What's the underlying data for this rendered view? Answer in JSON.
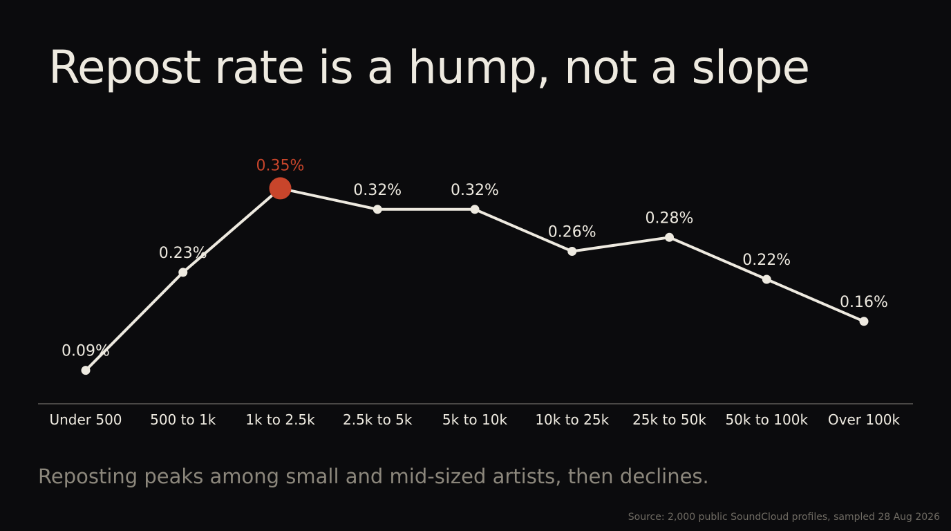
{
  "title": "Repost rate is a hump, not a slope",
  "subtitle": "Reposting peaks among small and mid-sized artists, then declines.",
  "source": "Source: 2,000 public SoundCloud profiles, sampled 28 Aug 2026",
  "colors": {
    "background": "#0b0b0d",
    "line": "#eeeae0",
    "highlight": "#c8452b",
    "subtitle": "#8c877c",
    "axis": "#8a867e"
  },
  "chart_data": {
    "type": "line",
    "categories": [
      "Under 500",
      "500 to 1k",
      "1k to 2.5k",
      "2.5k to 5k",
      "5k to 10k",
      "10k to 25k",
      "25k to 50k",
      "50k to 100k",
      "Over 100k"
    ],
    "values": [
      0.09,
      0.23,
      0.35,
      0.32,
      0.32,
      0.26,
      0.28,
      0.22,
      0.16
    ],
    "data_labels": [
      "0.09%",
      "0.23%",
      "0.35%",
      "0.32%",
      "0.32%",
      "0.26%",
      "0.28%",
      "0.22%",
      "0.16%"
    ],
    "highlight_index": 2,
    "y_unit": "%",
    "grid": false,
    "legend": "none"
  }
}
